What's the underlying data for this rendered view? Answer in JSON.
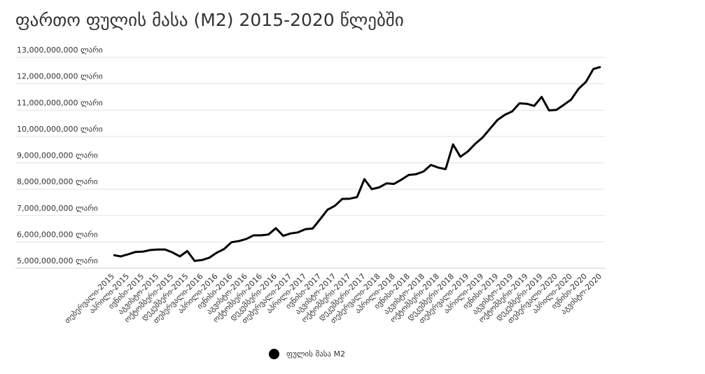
{
  "chart_data": {
    "type": "line",
    "title": "ფართო ფულის მასა (M2) 2015-2020 წლებში",
    "ylim": [
      5000000000,
      13000000000
    ],
    "yticks": [
      {
        "value": 5000000000,
        "label": "5,000,000,000 ლარი"
      },
      {
        "value": 6000000000,
        "label": "6,000,000,000 ლარი"
      },
      {
        "value": 7000000000,
        "label": "7,000,000,000 ლარი"
      },
      {
        "value": 8000000000,
        "label": "8,000,000,000 ლარი"
      },
      {
        "value": 9000000000,
        "label": "9,000,000,000 ლარი"
      },
      {
        "value": 10000000000,
        "label": "10,000,000,000 ლარი"
      },
      {
        "value": 11000000000,
        "label": "11,000,000,000 ლარი"
      },
      {
        "value": 12000000000,
        "label": "12,000,000,000 ლარი"
      },
      {
        "value": 13000000000,
        "label": "13,000,000,000 ლარი"
      }
    ],
    "grid": true,
    "legend_position": "bottom",
    "x_tick_labels": [
      "თებერვალი-2015",
      "აპრილი-2015",
      "ივნისი-2015",
      "აგვისტო-2015",
      "ოქტომბერი-2015",
      "დეკემბერი-2015",
      "თებერვალი-2016",
      "აპრილი-2016",
      "ივნისი-2016",
      "აგვისტო-2016",
      "ოქტომბერი-2016",
      "დეკემბერი-2016",
      "თებერვალი-2017",
      "აპრილი-2017",
      "ივნისი-2017",
      "აგვისტო-2017",
      "ოქტომბერი-2017",
      "დეკემბერი-2017",
      "თებერვალი-2018",
      "აპრილი-2018",
      "ივნისი-2018",
      "აგვისტო-2018",
      "ოქტომბერი-2018",
      "დეკემბერი-2018",
      "თებერვალი-2019",
      "აპრილი-2019",
      "ივნისი-2019",
      "აგვისტო-2019",
      "ოქტომბერი-2019",
      "დეკემბერი-2019",
      "თებერვალი-2020",
      "აპრილი-2020",
      "ივნისი-2020",
      "აგვისტო-2020"
    ],
    "series": [
      {
        "name": "ფულის მასა M2",
        "color": "#000000",
        "values": [
          5500000000,
          5450000000,
          5530000000,
          5620000000,
          5630000000,
          5690000000,
          5710000000,
          5710000000,
          5600000000,
          5450000000,
          5650000000,
          5280000000,
          5310000000,
          5400000000,
          5590000000,
          5730000000,
          5990000000,
          6030000000,
          6110000000,
          6250000000,
          6250000000,
          6280000000,
          6520000000,
          6230000000,
          6320000000,
          6360000000,
          6480000000,
          6510000000,
          6860000000,
          7220000000,
          7370000000,
          7630000000,
          7640000000,
          7700000000,
          8380000000,
          8000000000,
          8070000000,
          8220000000,
          8200000000,
          8360000000,
          8540000000,
          8570000000,
          8670000000,
          8920000000,
          8820000000,
          8760000000,
          9700000000,
          9230000000,
          9430000000,
          9720000000,
          9960000000,
          10290000000,
          10620000000,
          10820000000,
          10950000000,
          11260000000,
          11240000000,
          11160000000,
          11500000000,
          10990000000,
          11010000000,
          11200000000,
          11400000000,
          11810000000,
          12070000000,
          12560000000,
          12640000000
        ]
      }
    ]
  },
  "legend": {
    "label": "ფულის მასა M2",
    "marker_color": "#000000"
  }
}
